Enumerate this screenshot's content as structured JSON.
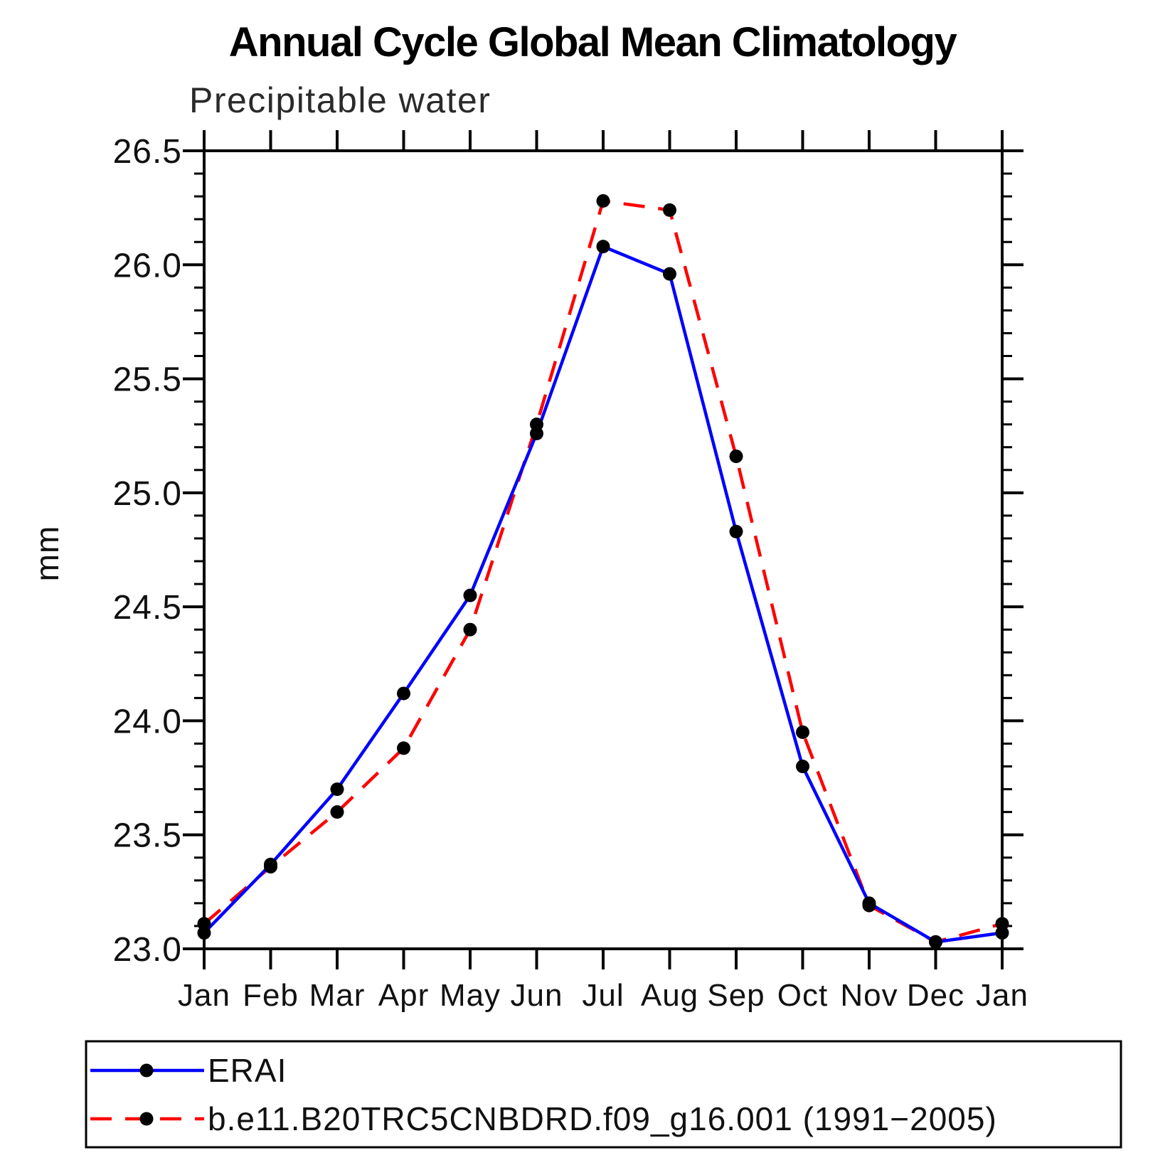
{
  "title": "Annual Cycle Global Mean Climatology",
  "subtitle": "Precipitable water",
  "chart_data": {
    "type": "line",
    "title": "Annual Cycle Global Mean Climatology",
    "subtitle": "Precipitable water",
    "xlabel": "",
    "ylabel": "mm",
    "x_categories": [
      "Jan",
      "Feb",
      "Mar",
      "Apr",
      "May",
      "Jun",
      "Jul",
      "Aug",
      "Sep",
      "Oct",
      "Nov",
      "Dec",
      "Jan"
    ],
    "ylim": [
      23.0,
      26.5
    ],
    "ytick_step": 0.5,
    "ytick_minor_step": 0.1,
    "ytick_labels": [
      "23.0",
      "23.5",
      "24.0",
      "24.5",
      "25.0",
      "25.5",
      "26.0",
      "26.5"
    ],
    "grid": false,
    "legend_position": "below-plot",
    "axis_color": "#000000",
    "series": [
      {
        "name": "ERAI",
        "color": "#0000ff",
        "style": "solid",
        "marker": "circle",
        "marker_color": "#000000",
        "values": [
          23.07,
          23.37,
          23.7,
          24.12,
          24.55,
          25.26,
          26.08,
          25.96,
          24.83,
          23.8,
          23.2,
          23.03,
          23.07
        ]
      },
      {
        "name": "b.e11.B20TRC5CNBDRD.f09_g16.001 (1991−2005)",
        "color": "#ff0000",
        "style": "dashed",
        "marker": "circle",
        "marker_color": "#000000",
        "values": [
          23.11,
          23.36,
          23.6,
          23.88,
          24.4,
          25.3,
          26.28,
          26.24,
          25.16,
          23.95,
          23.19,
          23.03,
          23.11
        ]
      }
    ]
  }
}
